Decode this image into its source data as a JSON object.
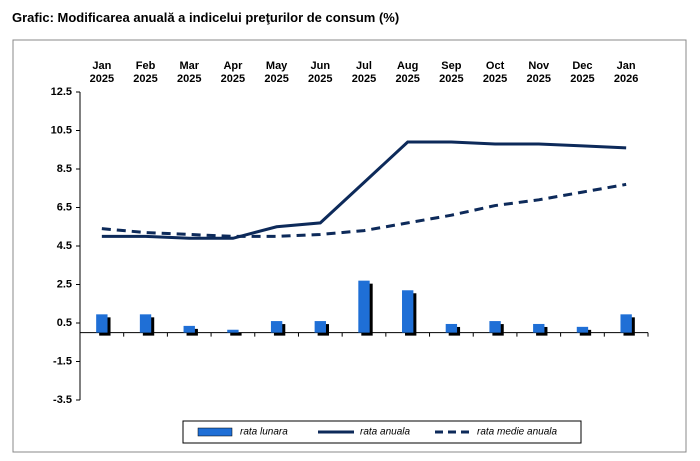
{
  "chart_data": {
    "type": "bar-line",
    "title": "Grafic: Modificarea anuală a indicelui preţurilor de consum (%)",
    "categories": [
      "Jan 2025",
      "Feb 2025",
      "Mar 2025",
      "Apr 2025",
      "May 2025",
      "Jun 2025",
      "Jul 2025",
      "Aug 2025",
      "Sep 2025",
      "Oct 2025",
      "Nov 2025",
      "Dec 2025",
      "Jan 2026"
    ],
    "series": [
      {
        "name": "rata lunara",
        "kind": "bar",
        "color": "#1f6fd6",
        "values": [
          0.95,
          0.95,
          0.35,
          0.15,
          0.6,
          0.6,
          2.7,
          2.2,
          0.45,
          0.6,
          0.45,
          0.3,
          0.95
        ]
      },
      {
        "name": "rata anuala",
        "kind": "line",
        "color": "#0d2a5a",
        "values": [
          5.0,
          5.0,
          4.9,
          4.9,
          5.5,
          5.7,
          7.8,
          9.9,
          9.9,
          9.8,
          9.8,
          9.7,
          9.6
        ]
      },
      {
        "name": "rata medie anuala",
        "kind": "dashed",
        "color": "#0d2a5a",
        "values": [
          5.4,
          5.2,
          5.1,
          5.0,
          5.0,
          5.1,
          5.3,
          5.7,
          6.1,
          6.6,
          6.9,
          7.3,
          7.7
        ]
      }
    ],
    "ylim": [
      -3.5,
      12.5
    ],
    "yticks": [
      12.5,
      10.5,
      8.5,
      6.5,
      4.5,
      2.5,
      0.5,
      -1.5,
      -3.5
    ]
  }
}
